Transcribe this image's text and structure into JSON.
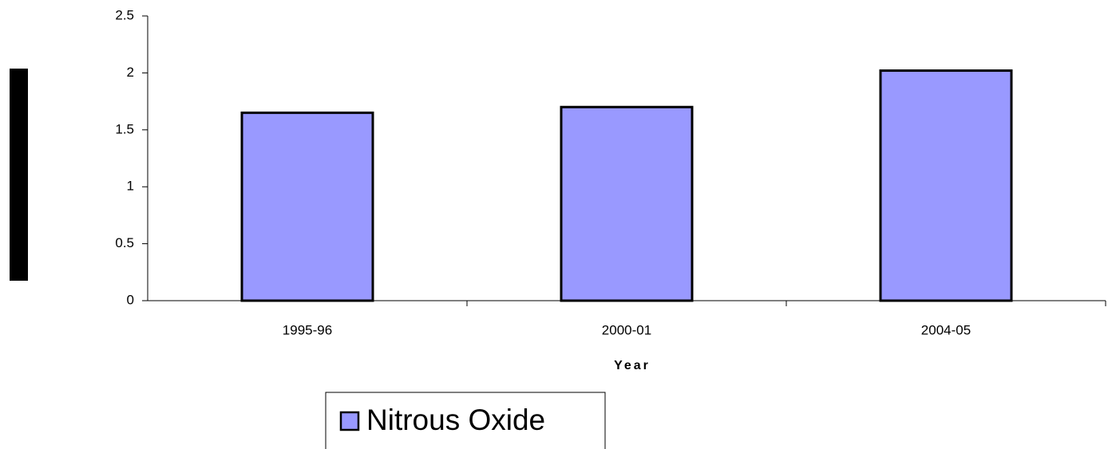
{
  "chart_data": {
    "type": "bar",
    "x_label": "Year",
    "categories": [
      "1995-96",
      "2000-01",
      "2004-05"
    ],
    "series": [
      {
        "name": "Nitrous Oxide",
        "color": "#9999ff",
        "values": [
          1.65,
          1.7,
          2.02
        ]
      }
    ],
    "ylim": [
      0,
      2.5
    ],
    "yticks": [
      0,
      0.5,
      1,
      1.5,
      2,
      2.5
    ],
    "grid": false,
    "legend": "bottom"
  }
}
